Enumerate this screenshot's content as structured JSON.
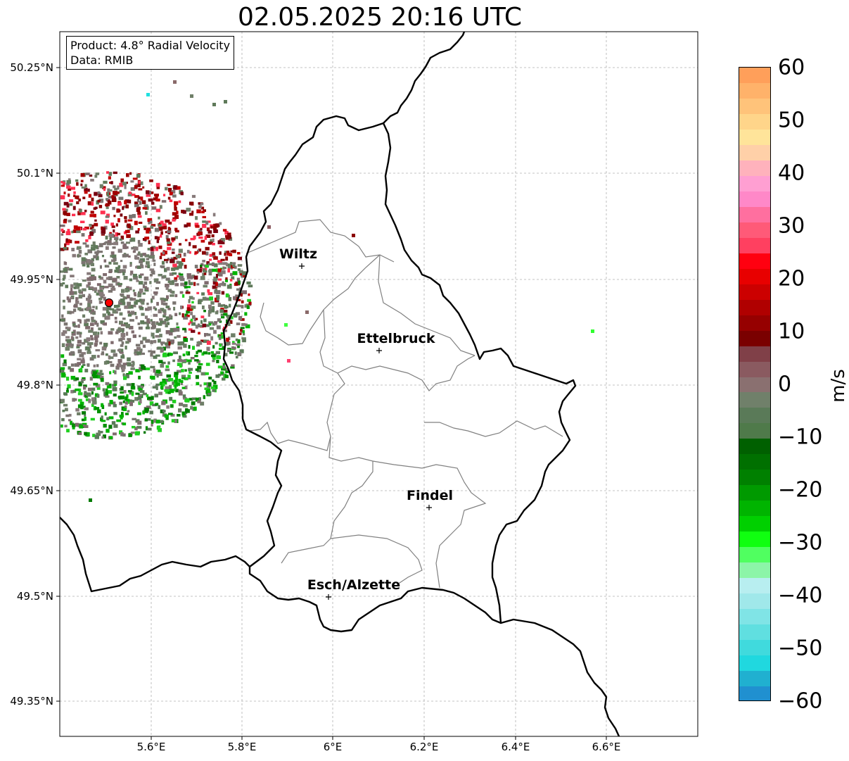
{
  "title": "02.05.2025 20:16 UTC",
  "info": {
    "product": "Product: 4.8° Radial Velocity",
    "data_source": "Data: RMIB"
  },
  "axes": {
    "lat_labels": [
      "50.25°N",
      "50.1°N",
      "49.95°N",
      "49.8°N",
      "49.65°N",
      "49.5°N",
      "49.35°N"
    ],
    "lon_labels": [
      "5.6°E",
      "5.8°E",
      "6°E",
      "6.2°E",
      "6.4°E",
      "6.6°E"
    ]
  },
  "cities": [
    {
      "name": "Wiltz"
    },
    {
      "name": "Ettelbruck"
    },
    {
      "name": "Findel"
    },
    {
      "name": "Esch/Alzette"
    }
  ],
  "colorbar": {
    "unit": "m/s",
    "ticks": [
      "60",
      "50",
      "40",
      "30",
      "20",
      "10",
      "0",
      "−10",
      "−20",
      "−30",
      "−40",
      "−50",
      "−60"
    ],
    "min": -60,
    "max": 60,
    "colors": [
      "#ff9f5a",
      "#ffb26a",
      "#ffc37a",
      "#ffd58a",
      "#ffe49a",
      "#ffd0a8",
      "#ffb2bc",
      "#ff9fd2",
      "#ff88c8",
      "#ff6f9f",
      "#ff5a78",
      "#ff4060",
      "#ff0010",
      "#e80000",
      "#cc0000",
      "#b00000",
      "#960000",
      "#7a0000",
      "#804048",
      "#8a5a60",
      "#8a7070",
      "#70806a",
      "#5a7a58",
      "#4f7a4a",
      "#006000",
      "#007000",
      "#008000",
      "#009a00",
      "#00b400",
      "#00d000",
      "#10ff10",
      "#50ff60",
      "#8cf5a8",
      "#b8eef0",
      "#a0e8ea",
      "#80e4e6",
      "#60dfe0",
      "#40dadd",
      "#20d8df",
      "#20b0d0",
      "#2090d0"
    ]
  },
  "radar_site": {
    "color": "#ff0000"
  }
}
